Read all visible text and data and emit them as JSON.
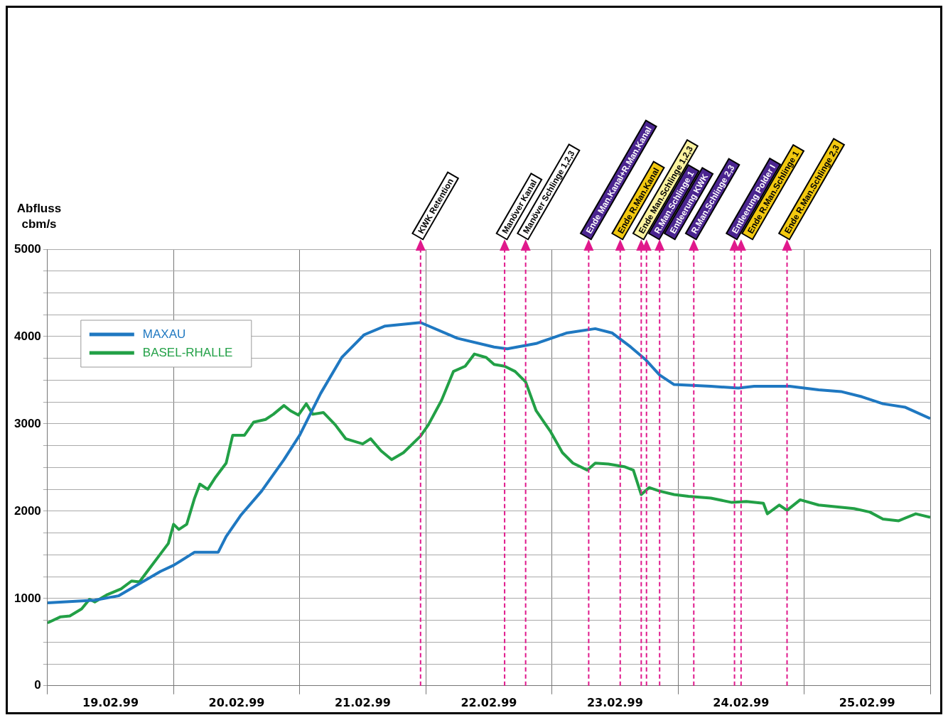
{
  "chart_data": {
    "type": "line",
    "ylabel": "Abfluss\ncbm/s",
    "xlim": [
      "1999-02-19T00:00",
      "1999-02-26T00:00"
    ],
    "xticks": [
      {
        "value": "1999-02-19T00:00",
        "label": null
      },
      {
        "value": "1999-02-19T12:00",
        "label": "19.02.99"
      },
      {
        "value": "1999-02-20T00:00",
        "label": null
      },
      {
        "value": "1999-02-20T12:00",
        "label": "20.02.99"
      },
      {
        "value": "1999-02-21T00:00",
        "label": null
      },
      {
        "value": "1999-02-21T12:00",
        "label": "21.02.99"
      },
      {
        "value": "1999-02-22T00:00",
        "label": null
      },
      {
        "value": "1999-02-22T12:00",
        "label": "22.02.99"
      },
      {
        "value": "1999-02-23T00:00",
        "label": null
      },
      {
        "value": "1999-02-23T12:00",
        "label": "23.02.99"
      },
      {
        "value": "1999-02-24T00:00",
        "label": null
      },
      {
        "value": "1999-02-24T12:00",
        "label": "24.02.99"
      },
      {
        "value": "1999-02-25T00:00",
        "label": null
      },
      {
        "value": "1999-02-25T12:00",
        "label": "25.02.99"
      },
      {
        "value": "1999-02-26T00:00",
        "label": null
      }
    ],
    "ylim": [
      0,
      5000
    ],
    "yticks": [
      0,
      {
        "value": 250,
        "label": null
      },
      {
        "value": 500,
        "label": null
      },
      {
        "value": 750,
        "label": null
      },
      1000,
      {
        "value": 1250,
        "label": null
      },
      {
        "value": 1500,
        "label": null
      },
      {
        "value": 1750,
        "label": null
      },
      2000,
      {
        "value": 2250,
        "label": null
      },
      {
        "value": 2500,
        "label": null
      },
      {
        "value": 2750,
        "label": null
      },
      3000,
      {
        "value": 3250,
        "label": null
      },
      {
        "value": 3500,
        "label": null
      },
      {
        "value": 3750,
        "label": null
      },
      4000,
      {
        "value": 4250,
        "label": null
      },
      {
        "value": 4500,
        "label": null
      },
      {
        "value": 4750,
        "label": null
      },
      5000
    ],
    "grid": true,
    "legend": "top left",
    "marker": "none",
    "line_style": "solid",
    "series": [
      {
        "name": "MAXAU",
        "color": "#1f78c1",
        "x": [
          "1999-02-19T00:00",
          "1999-02-19T09:00",
          "1999-02-19T13:30",
          "1999-02-19T21:30",
          "1999-02-20T00:00",
          "1999-02-20T04:00",
          "1999-02-20T08:30",
          "1999-02-20T10:00",
          "1999-02-20T12:45",
          "1999-02-20T16:45",
          "1999-02-20T21:00",
          "1999-02-21T00:00",
          "1999-02-21T04:00",
          "1999-02-21T08:00",
          "1999-02-21T12:15",
          "1999-02-21T16:15",
          "1999-02-21T23:00",
          "1999-02-22T06:00",
          "1999-02-22T13:00",
          "1999-02-22T15:30",
          "1999-02-22T21:00",
          "1999-02-23T02:45",
          "1999-02-23T08:15",
          "1999-02-23T11:30",
          "1999-02-23T15:00",
          "1999-02-23T17:45",
          "1999-02-23T20:30",
          "1999-02-23T23:15",
          "1999-02-24T06:15",
          "1999-02-24T11:30",
          "1999-02-24T14:30",
          "1999-02-24T21:15",
          "1999-02-25T02:45",
          "1999-02-25T07:00",
          "1999-02-25T11:00",
          "1999-02-25T15:00",
          "1999-02-25T19:15",
          "1999-02-26T00:00"
        ],
        "values": [
          950,
          980,
          1030,
          1310,
          1380,
          1530,
          1530,
          1710,
          1950,
          2230,
          2590,
          2870,
          3350,
          3760,
          4020,
          4120,
          4160,
          3980,
          3880,
          3860,
          3920,
          4040,
          4090,
          4040,
          3880,
          3740,
          3560,
          3450,
          3430,
          3410,
          3430,
          3430,
          3390,
          3370,
          3310,
          3230,
          3190,
          3060
        ]
      },
      {
        "name": "BASEL-RHALLE",
        "color": "#22a046",
        "x": [
          "1999-02-19T00:00",
          "1999-02-19T02:30",
          "1999-02-19T04:15",
          "1999-02-19T06:30",
          "1999-02-19T08:00",
          "1999-02-19T09:00",
          "1999-02-19T11:15",
          "1999-02-19T14:00",
          "1999-02-19T16:00",
          "1999-02-19T17:30",
          "1999-02-19T19:30",
          "1999-02-19T21:30",
          "1999-02-19T23:00",
          "1999-02-20T00:00",
          "1999-02-20T01:00",
          "1999-02-20T02:30",
          "1999-02-20T04:00",
          "1999-02-20T05:00",
          "1999-02-20T06:30",
          "1999-02-20T08:00",
          "1999-02-20T10:00",
          "1999-02-20T11:15",
          "1999-02-20T13:30",
          "1999-02-20T15:15",
          "1999-02-20T17:30",
          "1999-02-20T19:00",
          "1999-02-20T21:00",
          "1999-02-20T22:15",
          "1999-02-20T23:45",
          "1999-02-21T01:15",
          "1999-02-21T02:30",
          "1999-02-21T04:30",
          "1999-02-21T06:45",
          "1999-02-21T08:45",
          "1999-02-21T12:00",
          "1999-02-21T13:30",
          "1999-02-21T15:30",
          "1999-02-21T17:30",
          "1999-02-21T19:45",
          "1999-02-21T23:00",
          "1999-02-22T00:30",
          "1999-02-22T03:00",
          "1999-02-22T05:15",
          "1999-02-22T07:30",
          "1999-02-22T09:15",
          "1999-02-22T11:30",
          "1999-02-22T13:00",
          "1999-02-22T15:00",
          "1999-02-22T17:00",
          "1999-02-22T19:00",
          "1999-02-22T21:00",
          "1999-02-22T23:45",
          "1999-02-23T02:00",
          "1999-02-23T04:00",
          "1999-02-23T06:45",
          "1999-02-23T08:15",
          "1999-02-23T10:45",
          "1999-02-23T13:45",
          "1999-02-23T15:30",
          "1999-02-23T17:00",
          "1999-02-23T18:30",
          "1999-02-23T20:30",
          "1999-02-23T23:15",
          "1999-02-24T02:00",
          "1999-02-24T06:15",
          "1999-02-24T10:15",
          "1999-02-24T13:00",
          "1999-02-24T16:15",
          "1999-02-24T17:00",
          "1999-02-24T19:15",
          "1999-02-24T20:45",
          "1999-02-24T23:15",
          "1999-02-25T02:45",
          "1999-02-25T09:30",
          "1999-02-25T12:30",
          "1999-02-25T15:00",
          "1999-02-25T18:00",
          "1999-02-25T21:15",
          "1999-02-26T00:00"
        ],
        "values": [
          720,
          790,
          800,
          880,
          990,
          960,
          1040,
          1110,
          1200,
          1190,
          1350,
          1510,
          1630,
          1850,
          1790,
          1850,
          2150,
          2310,
          2250,
          2390,
          2550,
          2870,
          2870,
          3020,
          3050,
          3110,
          3210,
          3150,
          3100,
          3230,
          3110,
          3130,
          2990,
          2830,
          2770,
          2830,
          2690,
          2590,
          2670,
          2860,
          2990,
          3270,
          3600,
          3660,
          3800,
          3760,
          3680,
          3660,
          3600,
          3480,
          3150,
          2910,
          2670,
          2550,
          2470,
          2550,
          2540,
          2510,
          2470,
          2190,
          2270,
          2230,
          2190,
          2170,
          2150,
          2100,
          2110,
          2090,
          1970,
          2070,
          2010,
          2130,
          2070,
          2030,
          1990,
          1910,
          1890,
          1970,
          1930
        ]
      }
    ],
    "ref_lines": [
      {
        "axis": "x",
        "value": "1999-02-21T23:00",
        "label": "KWK Retention",
        "color": "#e0198c",
        "line_style": "dashed"
      },
      {
        "axis": "x",
        "value": "1999-02-22T15:00",
        "label": "Manöver Kanal",
        "color": "#e0198c",
        "line_style": "dashed"
      },
      {
        "axis": "x",
        "value": "1999-02-22T19:00",
        "label": "Manöver Schlinge 1,2,3",
        "color": "#e0198c",
        "line_style": "dashed"
      },
      {
        "axis": "x",
        "value": "1999-02-23T07:00",
        "label": "Ende Man.Kanal+R.Man.Kanal",
        "color": "#e0198c",
        "line_style": "dashed"
      },
      {
        "axis": "x",
        "value": "1999-02-23T13:00",
        "label": "Ende R.Man.Kanal",
        "color": "#e0198c",
        "line_style": "dashed"
      },
      {
        "axis": "x",
        "value": "1999-02-23T17:00",
        "label": "Ende Man.Schlinge 1,2,3",
        "color": "#e0198c",
        "line_style": "dashed"
      },
      {
        "axis": "x",
        "value": "1999-02-23T18:00",
        "label": "R.Man.Schlinge 1",
        "color": "#e0198c",
        "line_style": "dashed"
      },
      {
        "axis": "x",
        "value": "1999-02-23T20:30",
        "label": "Entleerung KWK",
        "color": "#e0198c",
        "line_style": "dashed"
      },
      {
        "axis": "x",
        "value": "1999-02-24T03:00",
        "label": "R.Man.Schlinge 2,3",
        "color": "#e0198c",
        "line_style": "dashed"
      },
      {
        "axis": "x",
        "value": "1999-02-24T10:45",
        "label": "Entleerung Polder I",
        "color": "#e0198c",
        "line_style": "dashed"
      },
      {
        "axis": "x",
        "value": "1999-02-24T12:00",
        "label": "Ende R.Man.Schlinge 1",
        "color": "#e0198c",
        "line_style": "dashed"
      },
      {
        "axis": "x",
        "value": "1999-02-24T20:45",
        "label": "Ende R.Man.Schlinge 2,3",
        "color": "#e0198c",
        "line_style": "dashed"
      }
    ]
  }
}
